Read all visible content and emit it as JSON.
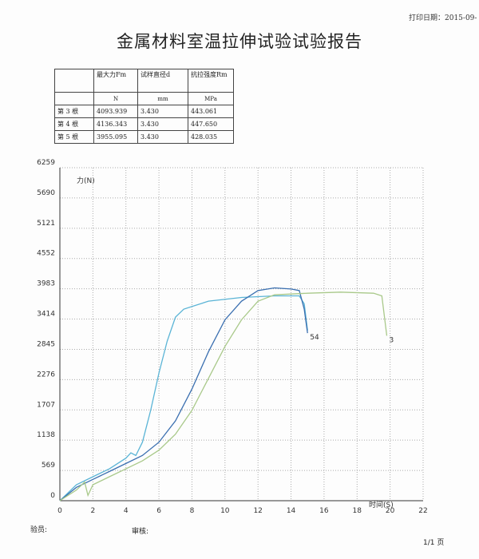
{
  "header": {
    "print_date": "打印日期：2015-09-"
  },
  "title": "金属材料室温拉伸试验试验报告",
  "table": {
    "header": [
      "",
      "最大力Fm",
      "试样直径d",
      "抗拉强度Rm"
    ],
    "units": [
      "",
      "N",
      "mm",
      "MPa"
    ],
    "rows": [
      [
        "第 3 根",
        "4093.939",
        "3.430",
        "443.061"
      ],
      [
        "第 4 根",
        "4136.343",
        "3.430",
        "447.650"
      ],
      [
        "第 5 根",
        "3955.095",
        "3.430",
        "428.035"
      ]
    ]
  },
  "chart_data": {
    "type": "line",
    "y_label": "力(N)",
    "x_label": "时间(S)",
    "xlim": [
      0,
      22
    ],
    "xticks": [
      0,
      2,
      4,
      6,
      8,
      10,
      12,
      14,
      16,
      18,
      20,
      22
    ],
    "ylim": [
      0,
      6259
    ],
    "yticks": [
      0,
      569,
      1138,
      1707,
      2276,
      2845,
      3414,
      3983,
      4552,
      5121,
      5690,
      6259
    ],
    "grid": true,
    "series": [
      {
        "color": "#5ab4d6",
        "x": [
          0,
          1,
          2,
          3,
          4,
          4.3,
          4.6,
          5,
          5.5,
          6,
          6.5,
          7,
          7.5,
          9,
          11,
          13,
          14.5,
          14.8,
          15
        ],
        "values": [
          0,
          300,
          450,
          600,
          800,
          900,
          850,
          1100,
          1700,
          2400,
          3000,
          3450,
          3600,
          3750,
          3820,
          3850,
          3850,
          3700,
          3200
        ]
      },
      {
        "color": "#3a6fb0",
        "x": [
          0,
          1,
          2,
          3,
          4,
          5,
          6,
          7,
          8,
          9,
          10,
          11,
          12,
          13,
          14,
          14.5,
          14.8,
          15
        ],
        "values": [
          0,
          250,
          400,
          550,
          700,
          850,
          1100,
          1500,
          2100,
          2800,
          3400,
          3750,
          3950,
          4000,
          3980,
          3950,
          3600,
          3150
        ]
      },
      {
        "color": "#a9c98a",
        "x": [
          0,
          1,
          1.5,
          1.7,
          2,
          3,
          4,
          5,
          6,
          7,
          8,
          9,
          10,
          11,
          12,
          13,
          15,
          17,
          19,
          19.5,
          19.8
        ],
        "values": [
          0,
          200,
          350,
          100,
          300,
          450,
          600,
          750,
          950,
          1250,
          1700,
          2300,
          2900,
          3400,
          3750,
          3870,
          3900,
          3920,
          3900,
          3850,
          3100
        ]
      }
    ],
    "annotations": [
      "54",
      "3"
    ]
  },
  "footer": {
    "tester": "验员:",
    "reviewer": "审核:",
    "page": "1/1 页"
  }
}
